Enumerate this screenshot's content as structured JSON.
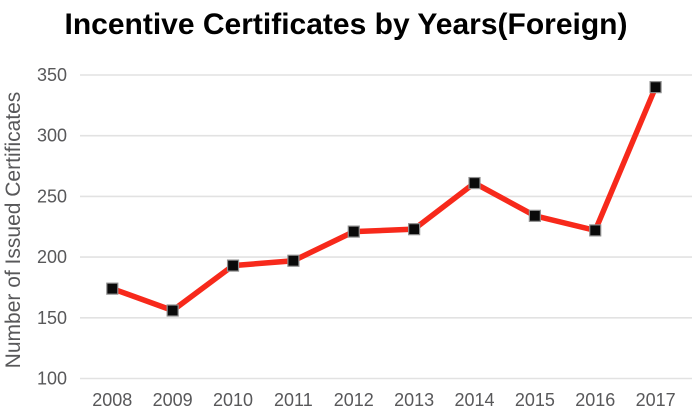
{
  "chart_data": {
    "type": "line",
    "title": "Incentive Certificates by Years(Foreign)",
    "xlabel": "",
    "ylabel": "Number of Issued Certificates",
    "categories": [
      "2008",
      "2009",
      "2010",
      "2011",
      "2012",
      "2013",
      "2014",
      "2015",
      "2016",
      "2017"
    ],
    "series": [
      {
        "name": "Issued Certificates",
        "values": [
          174,
          156,
          193,
          197,
          221,
          223,
          261,
          234,
          222,
          340
        ]
      }
    ],
    "ylim": [
      100,
      350
    ],
    "yticks": [
      100,
      150,
      200,
      250,
      300,
      350
    ],
    "grid": true,
    "legend_position": "none",
    "marker": "square",
    "colors": {
      "line": "#f7291b",
      "marker_fill": "#0a0a0a",
      "marker_stroke": "#8f8f8f",
      "tick_text": "#58585a",
      "gridline": "#e2e2e2",
      "title_text": "#000000",
      "background": "#ffffff"
    }
  }
}
